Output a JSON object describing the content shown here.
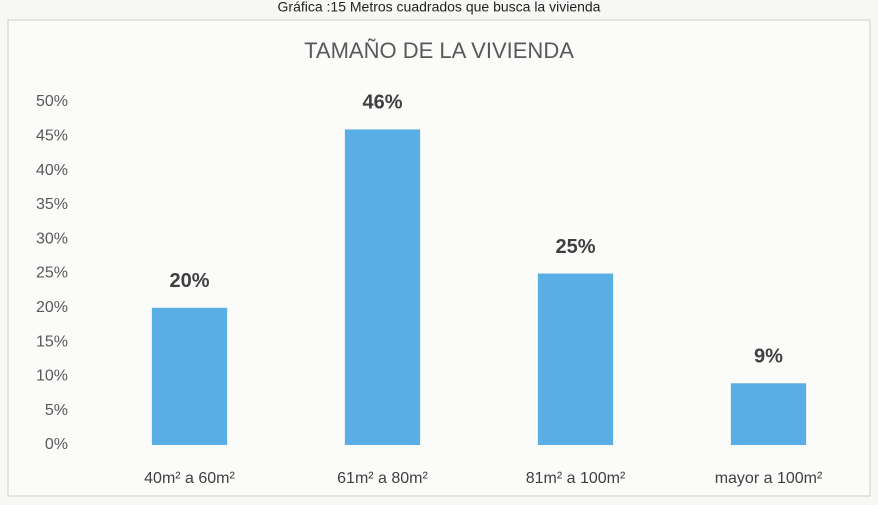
{
  "chart_data": {
    "type": "bar",
    "caption": "Gráfica :15 Metros cuadrados que busca la vivienda",
    "title": "TAMAÑO DE LA VIVIENDA",
    "categories": [
      "40m² a 60m²",
      "61m² a 80m²",
      "81m² a 100m²",
      "mayor a 100m²"
    ],
    "values": [
      20,
      46,
      25,
      9
    ],
    "value_labels": [
      "20%",
      "46%",
      "25%",
      "9%"
    ],
    "color": "#5aaee6",
    "ylim": [
      0,
      50
    ],
    "yticks": [
      {
        "value": 0,
        "label": "0%"
      },
      {
        "value": 5,
        "label": "5%"
      },
      {
        "value": 10,
        "label": "10%"
      },
      {
        "value": 15,
        "label": "15%"
      },
      {
        "value": 20,
        "label": "20%"
      },
      {
        "value": 25,
        "label": "25%"
      },
      {
        "value": 30,
        "label": "30%"
      },
      {
        "value": 35,
        "label": "35%"
      },
      {
        "value": 40,
        "label": "40%"
      },
      {
        "value": 45,
        "label": "45%"
      },
      {
        "value": 50,
        "label": "50%"
      }
    ],
    "grid": false
  }
}
